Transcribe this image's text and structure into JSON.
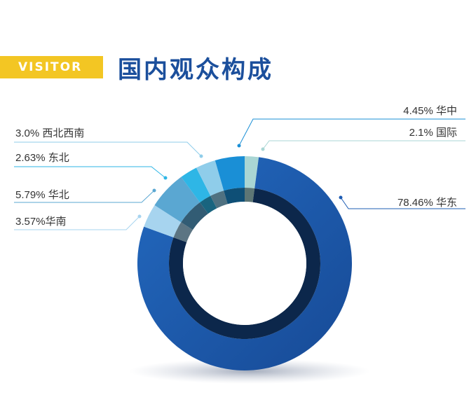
{
  "header": {
    "tag": "VISITOR",
    "title": "国内观众构成"
  },
  "colors": {
    "accent_yellow": "#f3c623",
    "title_blue": "#1b4f9c"
  },
  "chart_data": {
    "type": "pie",
    "style": "donut",
    "slices": [
      {
        "label": "78.46% 华东",
        "region": "华东",
        "value": 78.46,
        "color": "#1d5cb3",
        "side": "right"
      },
      {
        "label": "3.57%华南",
        "region": "华南",
        "value": 3.57,
        "color": "#a7d4ef",
        "side": "left"
      },
      {
        "label": "5.79% 华北",
        "region": "华北",
        "value": 5.79,
        "color": "#5aa7d2",
        "side": "left"
      },
      {
        "label": "2.63% 东北",
        "region": "东北",
        "value": 2.63,
        "color": "#2eb6e6",
        "side": "left"
      },
      {
        "label": "3.0% 西北西南",
        "region": "西北西南",
        "value": 3.0,
        "color": "#8fcdea",
        "side": "left"
      },
      {
        "label": "4.45% 华中",
        "region": "华中",
        "value": 4.45,
        "color": "#1a8fd6",
        "side": "right"
      },
      {
        "label": "2.1% 国际",
        "region": "国际",
        "value": 2.1,
        "color": "#a9d6d4",
        "side": "right"
      }
    ]
  }
}
